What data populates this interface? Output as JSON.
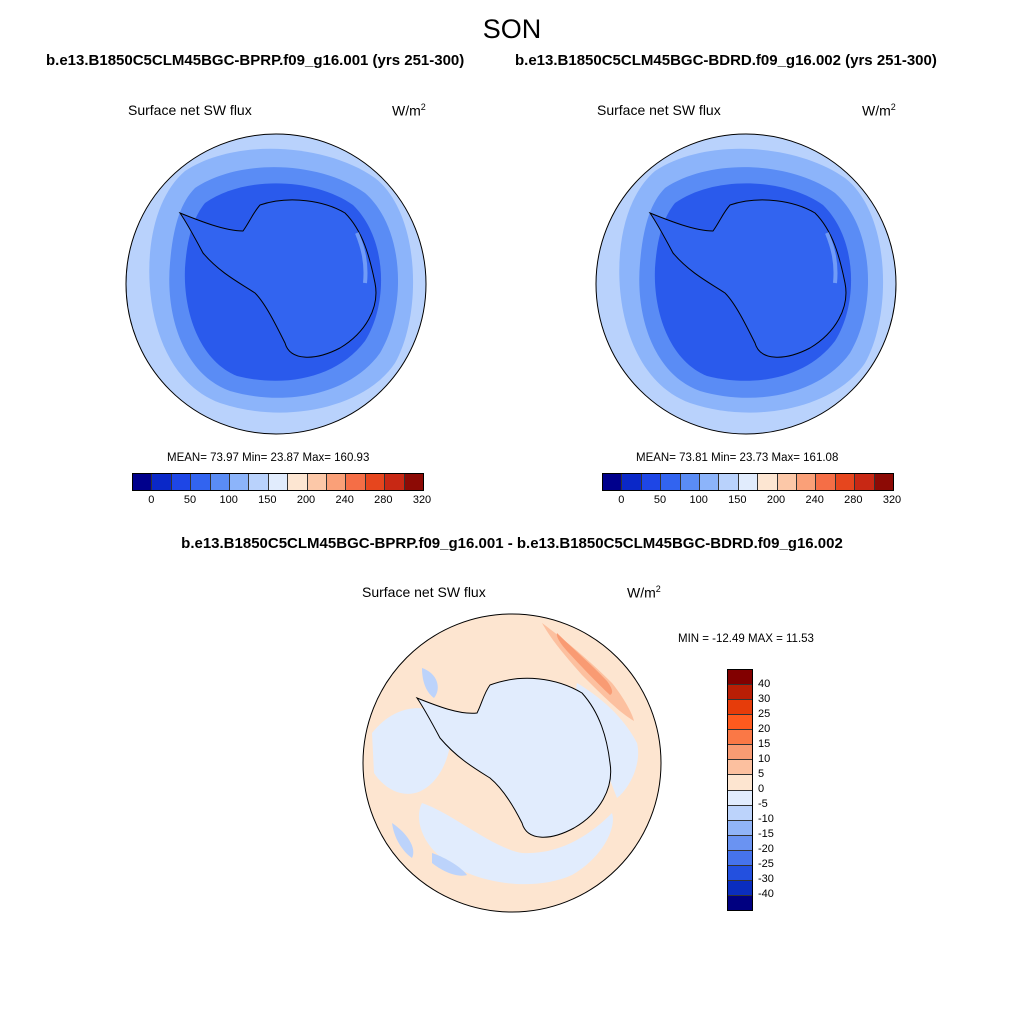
{
  "title": "SON",
  "panels": [
    {
      "case": "b.e13.B1850C5CLM45BGC-BPRP.f09_g16.001 (yrs 251-300)",
      "variable": "Surface net SW flux",
      "units_base": "W/m",
      "units_exp": "2",
      "stats_text": "MEAN=  73.97  Min=  23.87  Max= 160.93",
      "mean": 73.97,
      "min": 23.87,
      "max": 160.93
    },
    {
      "case": "b.e13.B1850C5CLM45BGC-BDRD.f09_g16.002 (yrs 251-300)",
      "variable": "Surface net SW flux",
      "units_base": "W/m",
      "units_exp": "2",
      "stats_text": "MEAN=  73.81  Min=  23.73  Max= 161.08",
      "mean": 73.81,
      "min": 23.73,
      "max": 161.08
    }
  ],
  "difference": {
    "title": "b.e13.B1850C5CLM45BGC-BPRP.f09_g16.001 - b.e13.B1850C5CLM45BGC-BDRD.f09_g16.002",
    "variable": "Surface net SW flux",
    "units_base": "W/m",
    "units_exp": "2",
    "stats_text": "MIN = -12.49 MAX =  11.53",
    "min": -12.49,
    "max": 11.53
  },
  "colorbar_abs": {
    "ticks": [
      "0",
      "50",
      "100",
      "150",
      "200",
      "240",
      "280",
      "320"
    ],
    "colors": [
      "#00008c",
      "#0a28c8",
      "#1e46e6",
      "#3264f0",
      "#5a8cf5",
      "#8cb4fa",
      "#b9d2fc",
      "#e1ecfd",
      "#fde6d2",
      "#fcc8a8",
      "#faa078",
      "#f56e46",
      "#e6461e",
      "#c82814",
      "#8c0a05"
    ]
  },
  "colorbar_diff": {
    "ticks": [
      "40",
      "30",
      "25",
      "20",
      "15",
      "10",
      "5",
      "0",
      "-5",
      "-10",
      "-15",
      "-20",
      "-25",
      "-30",
      "-40"
    ],
    "colors": [
      "#820000",
      "#b91e05",
      "#e63c0a",
      "#ff5a1e",
      "#fa7846",
      "#f99b73",
      "#fcc09f",
      "#fde5d0",
      "#e1ecfd",
      "#bcd3fb",
      "#91b4f7",
      "#6a93f2",
      "#4673ec",
      "#2350df",
      "#0a2dbe",
      "#000080"
    ]
  },
  "map_colors": {
    "ocean_outer": "#b9d2fc",
    "ocean_mid": "#8cb4fa",
    "ocean_inner": "#5a8cf5",
    "ice_core": "#3264f0",
    "ice_deep": "#2a5aec",
    "diff_background": "#fde5d0",
    "diff_light_blue": "#e1ecfd",
    "diff_blue": "#bcd3fb",
    "diff_orange": "#fcc09f",
    "diff_red": "#f99b73"
  }
}
